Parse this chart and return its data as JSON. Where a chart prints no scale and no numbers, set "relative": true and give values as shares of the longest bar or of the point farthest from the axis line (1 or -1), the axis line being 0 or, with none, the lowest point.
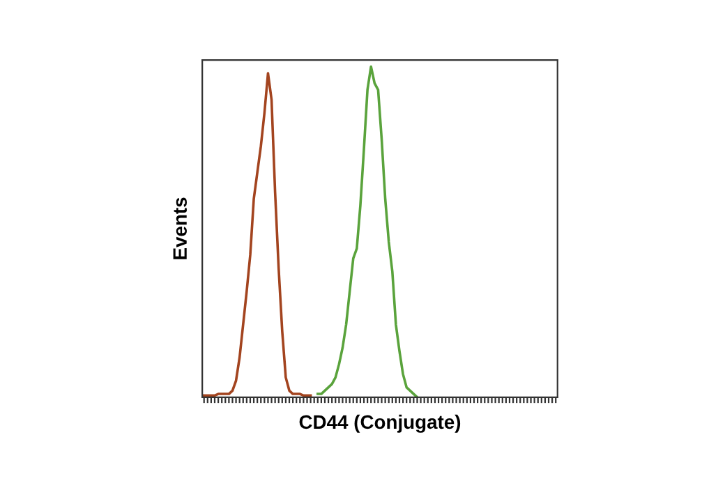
{
  "chart_data": {
    "type": "line",
    "relative": true,
    "xlabel": "CD44 (Conjugate)",
    "ylabel": "Events",
    "tick_labels": false,
    "grid": false,
    "legend": false,
    "marker": "none",
    "line_style": "solid",
    "categories": [
      null,
      null,
      null,
      null,
      null,
      null,
      null,
      null,
      null,
      null,
      null,
      null,
      null,
      null,
      null,
      null,
      null,
      null,
      null,
      null,
      null,
      null,
      null,
      null,
      null,
      null,
      null,
      null,
      null,
      null,
      null,
      null,
      null,
      null,
      null,
      null,
      null,
      null,
      null,
      null,
      null,
      null,
      null,
      null,
      null,
      null,
      null,
      null,
      null,
      null,
      null,
      null,
      null,
      null,
      null,
      null,
      null,
      null,
      null,
      null,
      null,
      null,
      null,
      null,
      null,
      null,
      null,
      null,
      null,
      null,
      null,
      null,
      null,
      null,
      null,
      null,
      null,
      null,
      null,
      null,
      null,
      null,
      null,
      null,
      null,
      null,
      null,
      null,
      null,
      null,
      null,
      null,
      null,
      null,
      null,
      null,
      null,
      null,
      null,
      null
    ],
    "series": [
      {
        "color": "#a3441f",
        "values": [
          0.005,
          0.005,
          0.005,
          0.005,
          0.01,
          0.01,
          0.01,
          0.01,
          0.02,
          0.05,
          0.12,
          0.22,
          0.32,
          0.43,
          0.6,
          0.68,
          0.76,
          0.86,
          0.98,
          0.9,
          0.62,
          0.39,
          0.2,
          0.06,
          0.02,
          0.01,
          0.01,
          0.01,
          0.005,
          0.005,
          0.005,
          null,
          null,
          null,
          null,
          null,
          null,
          null,
          null,
          null,
          null,
          null,
          null,
          null,
          null,
          null,
          null,
          null,
          null,
          null,
          null,
          null,
          null,
          null,
          null,
          null,
          null,
          null,
          null,
          null,
          null,
          null,
          null,
          null,
          null,
          null,
          null,
          null,
          null,
          null,
          null,
          null,
          null,
          null,
          null,
          null,
          null,
          null,
          null,
          null,
          null,
          null,
          null,
          null,
          null,
          null,
          null,
          null,
          null,
          null,
          null,
          null,
          null,
          null,
          null,
          null,
          null,
          null,
          null,
          null
        ]
      },
      {
        "color": "#5aa33c",
        "values": [
          null,
          null,
          null,
          null,
          null,
          null,
          null,
          null,
          null,
          null,
          null,
          null,
          null,
          null,
          null,
          null,
          null,
          null,
          null,
          null,
          null,
          null,
          null,
          null,
          null,
          null,
          null,
          null,
          null,
          null,
          null,
          null,
          0.01,
          0.01,
          0.02,
          0.03,
          0.04,
          0.06,
          0.1,
          0.15,
          0.22,
          0.32,
          0.42,
          0.45,
          0.58,
          0.75,
          0.93,
          1.0,
          0.95,
          0.93,
          0.78,
          0.6,
          0.47,
          0.38,
          0.22,
          0.14,
          0.07,
          0.03,
          0.02,
          0.01,
          0.0,
          null,
          null,
          null,
          null,
          null,
          null,
          null,
          null,
          null,
          null,
          null,
          null,
          null,
          null,
          null,
          null,
          null,
          null,
          null,
          null,
          null,
          null,
          null,
          null,
          null,
          null,
          null,
          null,
          null,
          null,
          null,
          null,
          null,
          null,
          null,
          null,
          null,
          null,
          null
        ]
      }
    ]
  }
}
